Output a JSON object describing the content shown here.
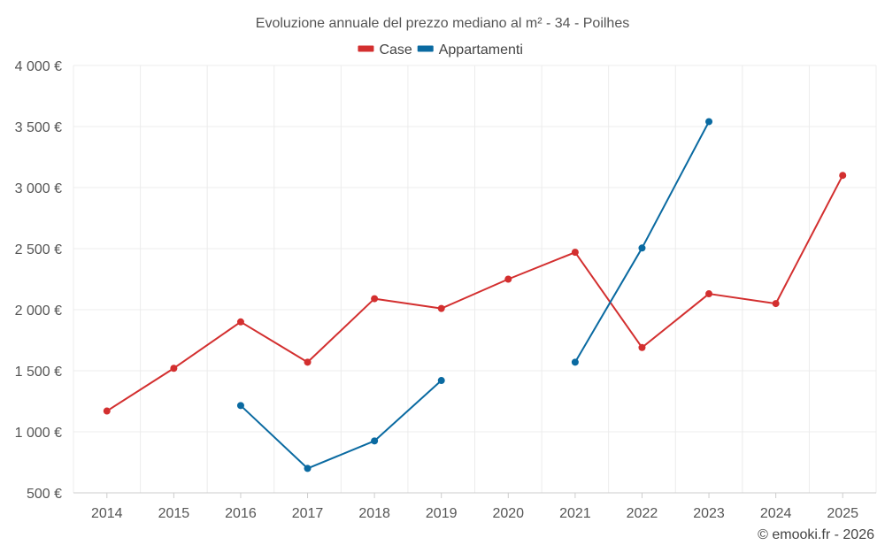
{
  "chart_data": {
    "type": "line",
    "title": "Evoluzione annuale del prezzo mediano al m² - 34 - Poilhes",
    "categories": [
      "2014",
      "2015",
      "2016",
      "2017",
      "2018",
      "2019",
      "2020",
      "2021",
      "2022",
      "2023",
      "2024",
      "2025"
    ],
    "ylim": [
      500,
      4000
    ],
    "yticks": [
      500,
      1000,
      1500,
      2000,
      2500,
      3000,
      3500,
      4000
    ],
    "ytick_labels": [
      "500 €",
      "1 000 €",
      "1 500 €",
      "2 000 €",
      "2 500 €",
      "3 000 €",
      "3 500 €",
      "4 000 €"
    ],
    "legend_position": "top-center",
    "grid": true,
    "series": [
      {
        "name": "Case",
        "color": "#d32f2f",
        "values": [
          1170,
          1520,
          1900,
          1570,
          2090,
          2010,
          2250,
          2470,
          1690,
          2130,
          2050,
          3100
        ]
      },
      {
        "name": "Appartamenti",
        "color": "#0a6aa1",
        "values": [
          null,
          null,
          1215,
          700,
          925,
          1420,
          null,
          1570,
          2505,
          3540,
          null,
          null
        ]
      }
    ]
  },
  "credit": "© emooki.fr - 2026"
}
